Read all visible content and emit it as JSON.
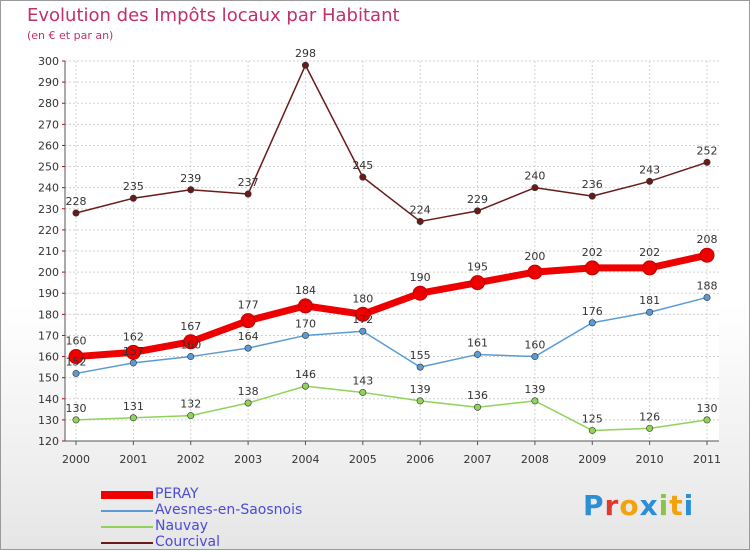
{
  "header": {
    "title": "Evolution des Impôts locaux par Habitant",
    "subtitle": "(en € et par an)"
  },
  "colors": {
    "title": "#c0306e",
    "legend_text": "#4b4bd6",
    "axis_text": "#333333"
  },
  "logo": {
    "letters": [
      "P",
      "r",
      "o",
      "x",
      "i",
      "t",
      "i"
    ],
    "colors": [
      "#2a8fd6",
      "#e23a2a",
      "#f2a20c",
      "#2a8fd6",
      "#8bc34a",
      "#f2a20c",
      "#2a8fd6"
    ]
  },
  "chart_data": {
    "type": "line",
    "title": "Evolution des Impôts locaux par Habitant",
    "subtitle": "(en € et par an)",
    "xlabel": "",
    "ylabel": "",
    "categories": [
      "2000",
      "2001",
      "2002",
      "2003",
      "2004",
      "2005",
      "2006",
      "2007",
      "2008",
      "2009",
      "2010",
      "2011"
    ],
    "ylim": [
      120,
      300
    ],
    "yticks": [
      120,
      130,
      140,
      150,
      160,
      170,
      180,
      190,
      200,
      210,
      220,
      230,
      240,
      250,
      260,
      270,
      280,
      290,
      300
    ],
    "grid": true,
    "legend_position": "bottom-left",
    "series": [
      {
        "name": "Courcival",
        "color": "#6b1a1a",
        "values": [
          228,
          235,
          239,
          237,
          298,
          245,
          224,
          229,
          240,
          236,
          243,
          252
        ]
      },
      {
        "name": "Nauvay",
        "color": "#8fd35a",
        "values": [
          130,
          131,
          132,
          138,
          146,
          143,
          139,
          136,
          139,
          125,
          126,
          130
        ]
      },
      {
        "name": "Avesnes-en-Saosnois",
        "color": "#5b9bd5",
        "values": [
          152,
          157,
          160,
          164,
          170,
          172,
          155,
          161,
          160,
          176,
          181,
          188
        ]
      },
      {
        "name": "PERAY",
        "color": "#ee0000",
        "values": [
          160,
          162,
          167,
          177,
          184,
          180,
          190,
          195,
          200,
          202,
          202,
          208
        ]
      }
    ],
    "legend": [
      "PERAY",
      "Avesnes-en-Saosnois",
      "Nauvay",
      "Courcival"
    ]
  }
}
